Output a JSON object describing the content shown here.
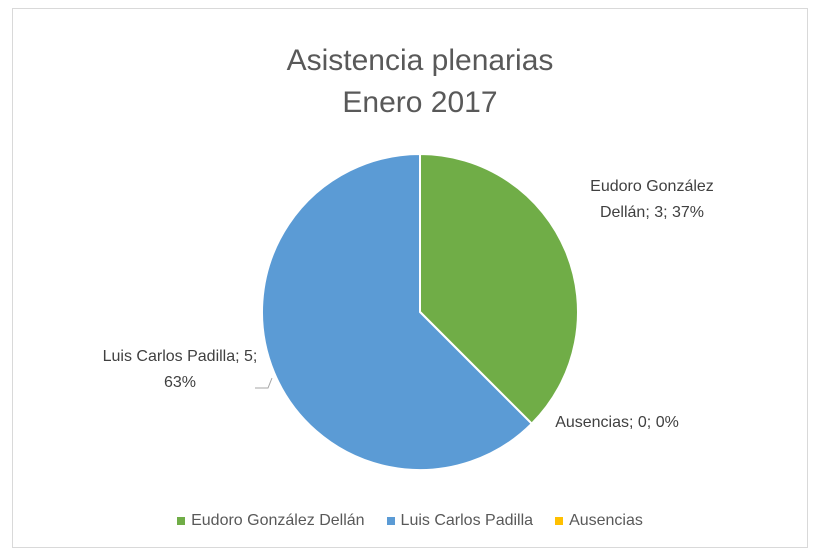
{
  "chart_data": {
    "type": "pie",
    "title": [
      "Asistencia plenarias",
      "Enero 2017"
    ],
    "categories": [
      "Eudoro González Dellán",
      "Ausencias",
      "Luis Carlos Padilla"
    ],
    "values": [
      3,
      0,
      5
    ],
    "value_labels": [
      "Eudoro González Dellán; 3; 37%",
      "Ausencias; 0; 0%",
      "Luis Carlos Padilla; 5; 63%"
    ],
    "colors": [
      "#70ad47",
      "#ffc000",
      "#5b9bd5"
    ],
    "legend": "bottom",
    "legend_order": [
      0,
      2,
      1
    ]
  }
}
